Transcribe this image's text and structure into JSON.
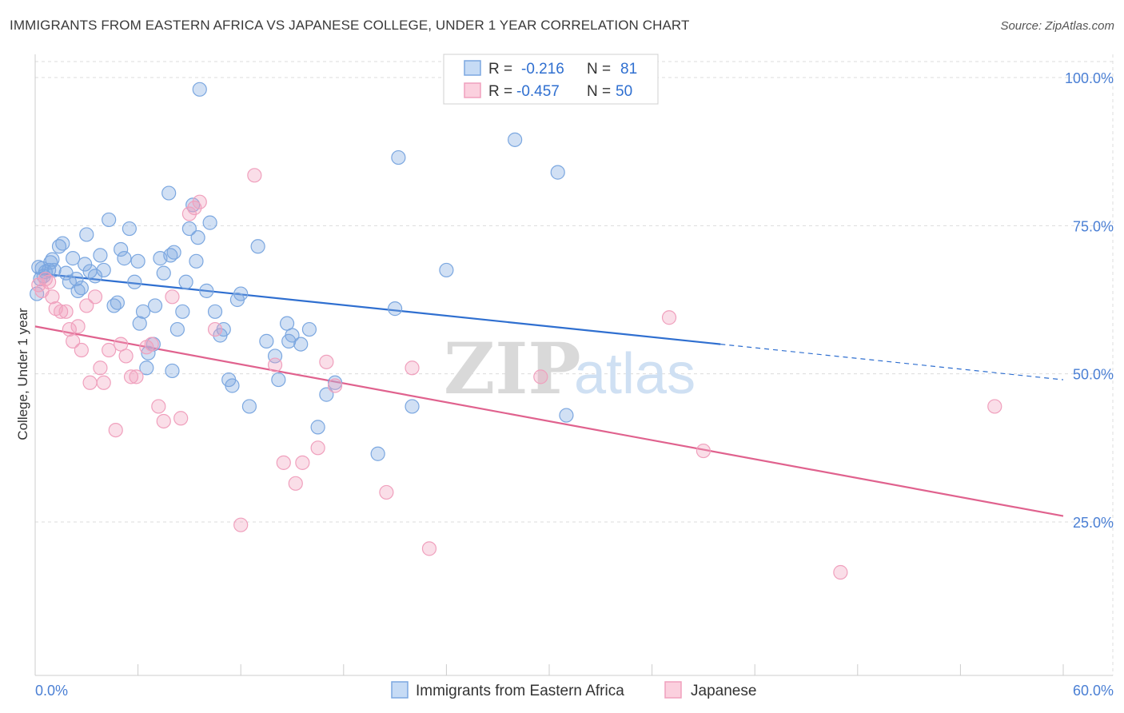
{
  "title": "IMMIGRANTS FROM EASTERN AFRICA VS JAPANESE COLLEGE, UNDER 1 YEAR CORRELATION CHART",
  "source": "Source: ZipAtlas.com",
  "watermark": {
    "zip": "ZIP",
    "atlas": "atlas"
  },
  "colors": {
    "blue": "#7ba7e0",
    "blue_line": "#2f6fd0",
    "pink": "#f0a0bd",
    "pink_line": "#e0628e",
    "axis_text": "#4a7fd4",
    "grid": "#dcdcdc"
  },
  "stats_legend": {
    "rows": [
      {
        "r_label": "R =",
        "r_value": "-0.216",
        "n_label": "N =",
        "n_value": "81"
      },
      {
        "r_label": "R =",
        "r_value": "-0.457",
        "n_label": "N =",
        "n_value": "50"
      }
    ]
  },
  "chart_data": {
    "type": "scatter",
    "xlabel": "",
    "ylabel": "College, Under 1 year",
    "xlim": [
      0,
      60
    ],
    "ylim": [
      0,
      105
    ],
    "x_tick_labels": [
      "0.0%",
      "60.0%"
    ],
    "y_ticks": [
      25,
      50,
      75,
      100
    ],
    "y_tick_labels": [
      "25.0%",
      "50.0%",
      "75.0%",
      "100.0%"
    ],
    "grid": true,
    "legend_position": "bottom",
    "series": [
      {
        "name": "Immigrants from Eastern Africa",
        "color": "#7ba7e0",
        "trend": {
          "x0": 0,
          "y0": 67.0,
          "x1": 40,
          "y1": 55.0,
          "dashed_to_x": 60,
          "dashed_to_y": 49.0
        },
        "points": [
          [
            0.1,
            63.5
          ],
          [
            0.2,
            68.0
          ],
          [
            0.4,
            67.8
          ],
          [
            0.5,
            66.5
          ],
          [
            0.6,
            67.2
          ],
          [
            0.8,
            67.5
          ],
          [
            0.9,
            68.8
          ],
          [
            1.0,
            69.3
          ],
          [
            1.4,
            71.5
          ],
          [
            1.6,
            72.0
          ],
          [
            1.8,
            67.0
          ],
          [
            2.0,
            65.5
          ],
          [
            2.2,
            69.5
          ],
          [
            2.4,
            66.0
          ],
          [
            2.7,
            64.5
          ],
          [
            2.9,
            68.5
          ],
          [
            3.2,
            67.3
          ],
          [
            3.5,
            66.5
          ],
          [
            3.8,
            70.0
          ],
          [
            4.0,
            67.5
          ],
          [
            4.3,
            76.0
          ],
          [
            4.6,
            61.5
          ],
          [
            4.8,
            62.0
          ],
          [
            5.0,
            71.0
          ],
          [
            5.2,
            69.5
          ],
          [
            5.5,
            74.5
          ],
          [
            5.8,
            65.5
          ],
          [
            6.0,
            69.0
          ],
          [
            6.1,
            58.5
          ],
          [
            6.3,
            60.5
          ],
          [
            6.6,
            53.5
          ],
          [
            6.9,
            55.0
          ],
          [
            7.0,
            61.5
          ],
          [
            7.3,
            69.5
          ],
          [
            7.5,
            67.0
          ],
          [
            7.9,
            70.0
          ],
          [
            8.1,
            70.5
          ],
          [
            8.3,
            57.5
          ],
          [
            8.6,
            60.5
          ],
          [
            8.8,
            65.5
          ],
          [
            9.0,
            74.5
          ],
          [
            9.2,
            78.5
          ],
          [
            9.4,
            69.0
          ],
          [
            9.6,
            98.0
          ],
          [
            10.2,
            75.5
          ],
          [
            10.5,
            60.5
          ],
          [
            10.8,
            56.5
          ],
          [
            11.0,
            57.5
          ],
          [
            11.3,
            49.0
          ],
          [
            11.5,
            48.0
          ],
          [
            11.8,
            62.5
          ],
          [
            12.0,
            63.5
          ],
          [
            12.5,
            44.5
          ],
          [
            13.0,
            71.5
          ],
          [
            13.5,
            55.5
          ],
          [
            14.0,
            53.0
          ],
          [
            14.2,
            49.0
          ],
          [
            14.7,
            58.5
          ],
          [
            14.8,
            55.5
          ],
          [
            15.0,
            56.5
          ],
          [
            15.5,
            55.0
          ],
          [
            16.0,
            57.5
          ],
          [
            16.5,
            41.0
          ],
          [
            17.0,
            46.5
          ],
          [
            17.5,
            48.5
          ],
          [
            20.0,
            36.5
          ],
          [
            21.0,
            61.0
          ],
          [
            21.2,
            86.5
          ],
          [
            22.0,
            44.5
          ],
          [
            24.0,
            67.5
          ],
          [
            28.0,
            89.5
          ],
          [
            30.5,
            84.0
          ],
          [
            31.0,
            43.0
          ],
          [
            8.0,
            50.5
          ],
          [
            6.5,
            51.0
          ],
          [
            10.0,
            64.0
          ],
          [
            3.0,
            73.5
          ],
          [
            2.5,
            64.0
          ],
          [
            9.5,
            73.0
          ],
          [
            7.8,
            80.5
          ],
          [
            1.1,
            67.5
          ],
          [
            0.3,
            66.0
          ]
        ]
      },
      {
        "name": "Japanese",
        "color": "#f0a0bd",
        "trend": {
          "x0": 0,
          "y0": 58.0,
          "x1": 60,
          "y1": 26.0
        },
        "points": [
          [
            0.2,
            65.0
          ],
          [
            0.4,
            64.0
          ],
          [
            0.6,
            66.0
          ],
          [
            0.8,
            65.5
          ],
          [
            1.0,
            63.0
          ],
          [
            1.2,
            61.0
          ],
          [
            1.5,
            60.5
          ],
          [
            1.8,
            60.5
          ],
          [
            2.0,
            57.5
          ],
          [
            2.2,
            55.5
          ],
          [
            2.5,
            58.0
          ],
          [
            2.7,
            54.0
          ],
          [
            3.0,
            61.5
          ],
          [
            3.2,
            48.5
          ],
          [
            3.5,
            63.0
          ],
          [
            3.8,
            51.0
          ],
          [
            4.0,
            48.5
          ],
          [
            4.3,
            54.0
          ],
          [
            4.7,
            40.5
          ],
          [
            5.0,
            55.0
          ],
          [
            5.3,
            53.0
          ],
          [
            5.6,
            49.5
          ],
          [
            5.9,
            49.5
          ],
          [
            6.5,
            54.5
          ],
          [
            6.8,
            55.0
          ],
          [
            7.2,
            44.5
          ],
          [
            7.5,
            42.0
          ],
          [
            8.0,
            63.0
          ],
          [
            8.5,
            42.5
          ],
          [
            9.0,
            77.0
          ],
          [
            9.3,
            78.0
          ],
          [
            9.6,
            79.0
          ],
          [
            10.5,
            57.5
          ],
          [
            12.0,
            24.5
          ],
          [
            12.8,
            83.5
          ],
          [
            14.0,
            51.5
          ],
          [
            14.5,
            35.0
          ],
          [
            15.2,
            31.5
          ],
          [
            15.6,
            35.0
          ],
          [
            16.5,
            37.5
          ],
          [
            17.0,
            52.0
          ],
          [
            17.5,
            48.0
          ],
          [
            20.5,
            30.0
          ],
          [
            22.0,
            51.0
          ],
          [
            23.0,
            20.5
          ],
          [
            29.5,
            49.5
          ],
          [
            37.0,
            59.5
          ],
          [
            39.0,
            37.0
          ],
          [
            47.0,
            16.5
          ],
          [
            56.0,
            44.5
          ]
        ]
      }
    ]
  }
}
